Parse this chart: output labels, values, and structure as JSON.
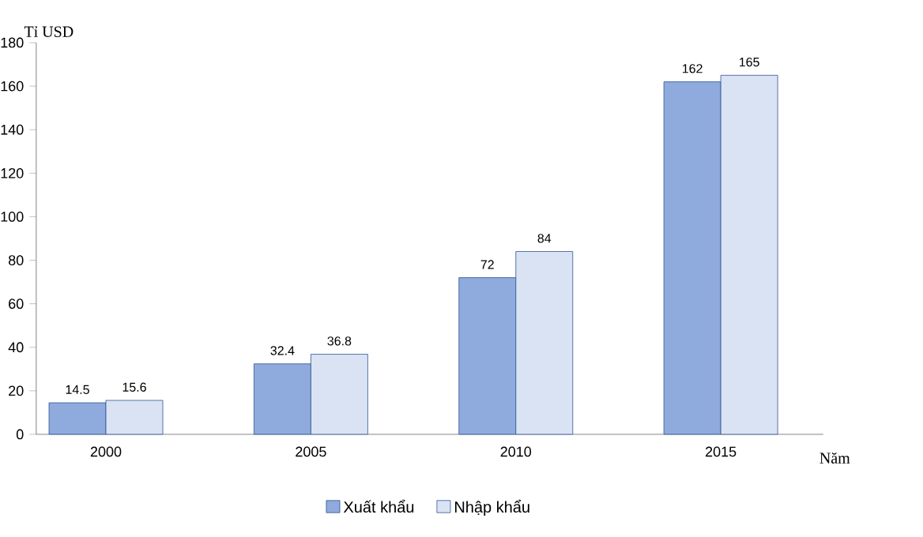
{
  "chart_data": {
    "type": "bar",
    "categories": [
      "2000",
      "2005",
      "2010",
      "2015"
    ],
    "xlabel": "Năm",
    "ylabel": "Tỉ USD",
    "ylim": [
      0,
      180
    ],
    "yticks": [
      0,
      20,
      40,
      60,
      80,
      100,
      120,
      140,
      160,
      180
    ],
    "series": [
      {
        "name": "Xuất khẩu",
        "color": "#8faadc",
        "values": [
          14.5,
          32.4,
          72,
          162
        ]
      },
      {
        "name": "Nhập khẩu",
        "color": "#dae3f3",
        "values": [
          15.6,
          36.8,
          84,
          165
        ]
      }
    ],
    "data_labels": true,
    "legend": "bottom"
  }
}
